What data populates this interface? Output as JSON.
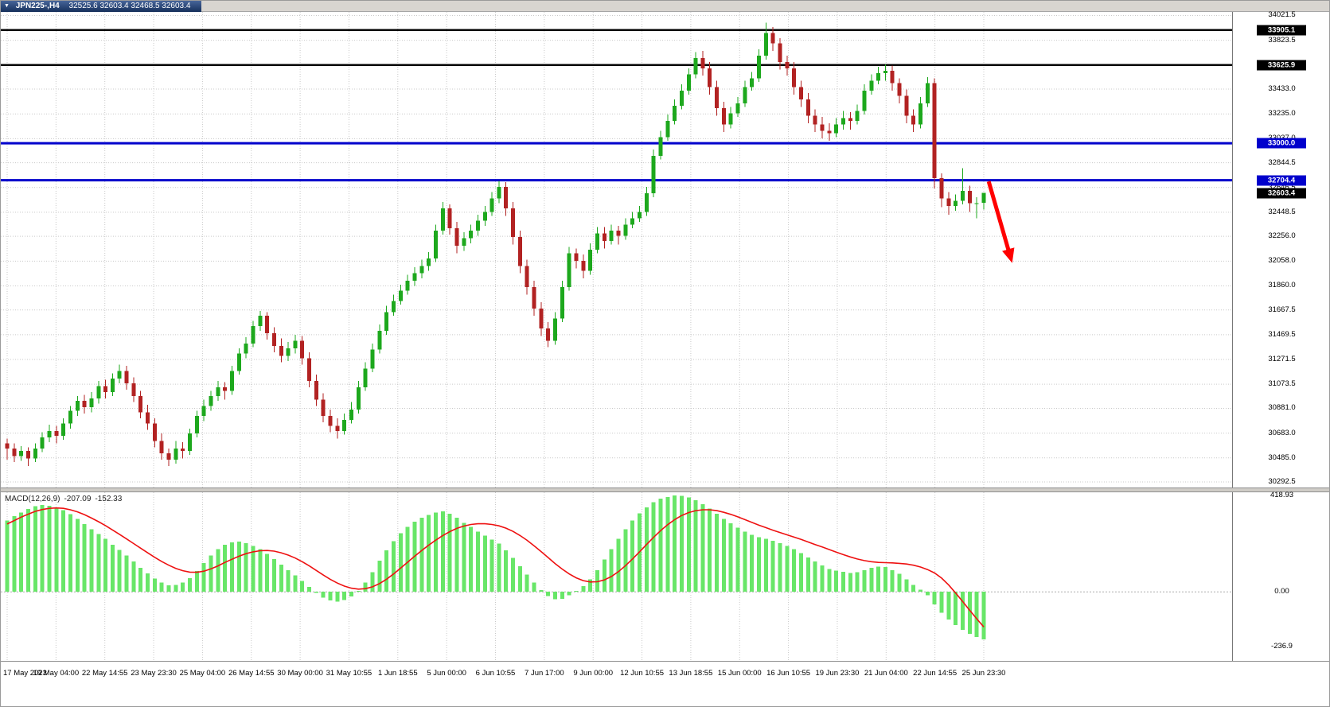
{
  "window": {
    "menu_glyph": "▼",
    "title_symbol": "JPN225-,H4",
    "title_ohlc": "32525.6 32603.4 32468.5 32603.4"
  },
  "chart_data": {
    "type": "candlestick",
    "title": "JPN225-,H4",
    "symbol": "JPN225-",
    "timeframe": "H4",
    "x_labels": [
      "17 May 2023",
      "19 May 04:00",
      "22 May 14:55",
      "23 May 23:30",
      "25 May 04:00",
      "26 May 14:55",
      "30 May 00:00",
      "31 May 10:55",
      "1 Jun 18:55",
      "5 Jun 00:00",
      "6 Jun 10:55",
      "7 Jun 17:00",
      "9 Jun 00:00",
      "12 Jun 10:55",
      "13 Jun 18:55",
      "15 Jun 00:00",
      "16 Jun 10:55",
      "19 Jun 23:30",
      "21 Jun 04:00",
      "22 Jun 14:55",
      "25 Jun 23:30"
    ],
    "price_ticks": [
      34021.5,
      33823.5,
      33625.5,
      33433.0,
      33235.0,
      33037.0,
      32844.5,
      32646.5,
      32448.5,
      32256.0,
      32058.0,
      31860.0,
      31667.5,
      31469.5,
      31271.5,
      31073.5,
      30881.0,
      30683.0,
      30485.0,
      30292.5
    ],
    "ylim": [
      30248,
      34050
    ],
    "h_lines": [
      {
        "value": 33905.1,
        "color": "#000000",
        "width": 2.5
      },
      {
        "value": 33625.9,
        "color": "#000000",
        "width": 2.5
      },
      {
        "value": 33000.0,
        "color": "#0000CC",
        "width": 3
      },
      {
        "value": 32704.4,
        "color": "#0000CC",
        "width": 3
      }
    ],
    "current_price": 32603.4,
    "arrow": {
      "color": "#FF0000",
      "from": {
        "index": 139.7,
        "price": 32695
      },
      "to": {
        "index": 142.7,
        "price": 32110
      }
    },
    "colors": {
      "up": "#1DA81D",
      "down": "#B22222",
      "grid": "#C9C9C9",
      "macd_hist": "#68E668",
      "macd_signal": "#EE1111",
      "line_black": "#000000",
      "line_blue": "#0000CC",
      "bg": "#FFFFFF"
    },
    "candles": [
      [
        30600,
        30640,
        30470,
        30560
      ],
      [
        30560,
        30600,
        30450,
        30500
      ],
      [
        30500,
        30580,
        30460,
        30540
      ],
      [
        30540,
        30570,
        30420,
        30480
      ],
      [
        30480,
        30600,
        30450,
        30560
      ],
      [
        30560,
        30690,
        30530,
        30650
      ],
      [
        30650,
        30750,
        30610,
        30700
      ],
      [
        30700,
        30740,
        30600,
        30660
      ],
      [
        30660,
        30800,
        30630,
        30760
      ],
      [
        30760,
        30900,
        30720,
        30860
      ],
      [
        30860,
        30980,
        30820,
        30940
      ],
      [
        30940,
        30990,
        30840,
        30890
      ],
      [
        30890,
        31010,
        30850,
        30960
      ],
      [
        30960,
        31100,
        30920,
        31060
      ],
      [
        31060,
        31110,
        30960,
        31010
      ],
      [
        31010,
        31160,
        30980,
        31120
      ],
      [
        31120,
        31230,
        31080,
        31180
      ],
      [
        31180,
        31220,
        31030,
        31080
      ],
      [
        31080,
        31130,
        30930,
        30980
      ],
      [
        30980,
        31020,
        30800,
        30850
      ],
      [
        30850,
        30910,
        30710,
        30760
      ],
      [
        30760,
        30800,
        30570,
        30620
      ],
      [
        30620,
        30680,
        30470,
        30520
      ],
      [
        30520,
        30560,
        30420,
        30470
      ],
      [
        30470,
        30620,
        30440,
        30560
      ],
      [
        30560,
        30610,
        30480,
        30540
      ],
      [
        30540,
        30720,
        30510,
        30680
      ],
      [
        30680,
        30860,
        30650,
        30820
      ],
      [
        30820,
        30950,
        30780,
        30900
      ],
      [
        30900,
        31020,
        30860,
        30980
      ],
      [
        30980,
        31100,
        30940,
        31050
      ],
      [
        31050,
        31090,
        30950,
        31020
      ],
      [
        31020,
        31220,
        30990,
        31180
      ],
      [
        31180,
        31360,
        31150,
        31320
      ],
      [
        31320,
        31450,
        31280,
        31400
      ],
      [
        31400,
        31580,
        31370,
        31540
      ],
      [
        31540,
        31660,
        31500,
        31620
      ],
      [
        31620,
        31650,
        31430,
        31480
      ],
      [
        31480,
        31530,
        31330,
        31380
      ],
      [
        31380,
        31440,
        31250,
        31300
      ],
      [
        31300,
        31410,
        31260,
        31360
      ],
      [
        31360,
        31470,
        31320,
        31420
      ],
      [
        31420,
        31460,
        31230,
        31280
      ],
      [
        31280,
        31330,
        31050,
        31100
      ],
      [
        31100,
        31150,
        30900,
        30950
      ],
      [
        30950,
        31000,
        30770,
        30820
      ],
      [
        30820,
        30870,
        30690,
        30740
      ],
      [
        30740,
        30800,
        30640,
        30700
      ],
      [
        30700,
        30840,
        30670,
        30790
      ],
      [
        30790,
        30930,
        30760,
        30870
      ],
      [
        30870,
        31100,
        30840,
        31050
      ],
      [
        31050,
        31250,
        31020,
        31200
      ],
      [
        31200,
        31400,
        31170,
        31350
      ],
      [
        31350,
        31550,
        31320,
        31500
      ],
      [
        31500,
        31700,
        31470,
        31650
      ],
      [
        31650,
        31790,
        31620,
        31740
      ],
      [
        31740,
        31870,
        31710,
        31820
      ],
      [
        31820,
        31950,
        31790,
        31900
      ],
      [
        31900,
        32010,
        31860,
        31960
      ],
      [
        31960,
        32070,
        31920,
        32020
      ],
      [
        32020,
        32130,
        31980,
        32080
      ],
      [
        32080,
        32350,
        32050,
        32300
      ],
      [
        32300,
        32530,
        32270,
        32480
      ],
      [
        32480,
        32510,
        32270,
        32320
      ],
      [
        32320,
        32370,
        32120,
        32180
      ],
      [
        32180,
        32290,
        32140,
        32240
      ],
      [
        32240,
        32350,
        32200,
        32300
      ],
      [
        32300,
        32430,
        32260,
        32380
      ],
      [
        32380,
        32500,
        32340,
        32450
      ],
      [
        32450,
        32610,
        32420,
        32560
      ],
      [
        32560,
        32700,
        32520,
        32650
      ],
      [
        32650,
        32690,
        32420,
        32480
      ],
      [
        32480,
        32530,
        32190,
        32250
      ],
      [
        32250,
        32300,
        31960,
        32020
      ],
      [
        32020,
        32070,
        31790,
        31850
      ],
      [
        31850,
        31900,
        31620,
        31680
      ],
      [
        31680,
        31730,
        31460,
        31520
      ],
      [
        31520,
        31570,
        31370,
        31420
      ],
      [
        31420,
        31650,
        31390,
        31600
      ],
      [
        31600,
        31900,
        31570,
        31850
      ],
      [
        31850,
        32170,
        31820,
        32120
      ],
      [
        32120,
        32160,
        32000,
        32060
      ],
      [
        32060,
        32110,
        31920,
        31980
      ],
      [
        31980,
        32200,
        31950,
        32150
      ],
      [
        32150,
        32330,
        32120,
        32280
      ],
      [
        32280,
        32330,
        32160,
        32220
      ],
      [
        32220,
        32350,
        32190,
        32300
      ],
      [
        32300,
        32340,
        32190,
        32260
      ],
      [
        32260,
        32400,
        32230,
        32350
      ],
      [
        32350,
        32450,
        32320,
        32400
      ],
      [
        32400,
        32500,
        32370,
        32450
      ],
      [
        32450,
        32650,
        32420,
        32600
      ],
      [
        32600,
        32950,
        32570,
        32900
      ],
      [
        32900,
        33100,
        32870,
        33050
      ],
      [
        33050,
        33230,
        33020,
        33180
      ],
      [
        33180,
        33350,
        33150,
        33300
      ],
      [
        33300,
        33470,
        33270,
        33420
      ],
      [
        33420,
        33600,
        33390,
        33550
      ],
      [
        33550,
        33730,
        33520,
        33680
      ],
      [
        33680,
        33740,
        33540,
        33600
      ],
      [
        33600,
        33650,
        33390,
        33450
      ],
      [
        33450,
        33500,
        33220,
        33280
      ],
      [
        33280,
        33330,
        33090,
        33150
      ],
      [
        33150,
        33290,
        33120,
        33240
      ],
      [
        33240,
        33370,
        33210,
        33320
      ],
      [
        33320,
        33500,
        33290,
        33450
      ],
      [
        33450,
        33570,
        33420,
        33520
      ],
      [
        33520,
        33750,
        33490,
        33700
      ],
      [
        33700,
        33965,
        33670,
        33880
      ],
      [
        33880,
        33930,
        33740,
        33800
      ],
      [
        33800,
        33840,
        33590,
        33650
      ],
      [
        33650,
        33700,
        33540,
        33600
      ],
      [
        33600,
        33650,
        33390,
        33450
      ],
      [
        33450,
        33500,
        33290,
        33350
      ],
      [
        33350,
        33400,
        33160,
        33220
      ],
      [
        33220,
        33270,
        33090,
        33150
      ],
      [
        33150,
        33210,
        33040,
        33100
      ],
      [
        33100,
        33160,
        33020,
        33080
      ],
      [
        33080,
        33200,
        33050,
        33150
      ],
      [
        33150,
        33260,
        33110,
        33200
      ],
      [
        33200,
        33250,
        33110,
        33180
      ],
      [
        33180,
        33310,
        33150,
        33260
      ],
      [
        33260,
        33470,
        33230,
        33420
      ],
      [
        33420,
        33550,
        33390,
        33500
      ],
      [
        33500,
        33610,
        33470,
        33560
      ],
      [
        33560,
        33630,
        33500,
        33580
      ],
      [
        33580,
        33620,
        33420,
        33480
      ],
      [
        33480,
        33520,
        33320,
        33380
      ],
      [
        33380,
        33430,
        33160,
        33220
      ],
      [
        33220,
        33270,
        33090,
        33150
      ],
      [
        33150,
        33370,
        33120,
        33320
      ],
      [
        33320,
        33530,
        33290,
        33480
      ],
      [
        33480,
        33520,
        32640,
        32720
      ],
      [
        32720,
        32760,
        32490,
        32560
      ],
      [
        32560,
        32610,
        32430,
        32500
      ],
      [
        32500,
        32590,
        32460,
        32540
      ],
      [
        32540,
        32800,
        32510,
        32620
      ],
      [
        32620,
        32660,
        32450,
        32520
      ],
      [
        32520,
        32570,
        32400,
        32520
      ],
      [
        32525.6,
        32603.4,
        32468.5,
        32603.4
      ]
    ],
    "macd": {
      "label": "MACD(12,26,9)",
      "value_main": "-207.09",
      "value_signal": "-152.33",
      "ticks": [
        {
          "label": "418.93",
          "value": 418.93
        },
        {
          "label": "0.00",
          "value": 0
        },
        {
          "label": "-236.9",
          "value": -236.9
        }
      ],
      "histogram": [
        310,
        330,
        345,
        360,
        372,
        378,
        375,
        368,
        355,
        338,
        318,
        295,
        272,
        252,
        230,
        205,
        182,
        158,
        132,
        105,
        80,
        58,
        40,
        28,
        30,
        40,
        60,
        90,
        125,
        158,
        185,
        205,
        215,
        218,
        212,
        200,
        185,
        165,
        142,
        118,
        95,
        72,
        48,
        22,
        -5,
        -25,
        -38,
        -42,
        -35,
        -20,
        5,
        40,
        85,
        135,
        180,
        220,
        255,
        283,
        305,
        322,
        335,
        345,
        350,
        340,
        322,
        300,
        282,
        262,
        245,
        228,
        210,
        180,
        148,
        112,
        75,
        40,
        8,
        -18,
        -32,
        -30,
        -15,
        5,
        25,
        55,
        95,
        140,
        185,
        230,
        272,
        310,
        342,
        368,
        390,
        405,
        412,
        418.93,
        417,
        410,
        398,
        382,
        362,
        340,
        318,
        298,
        280,
        262,
        248,
        238,
        230,
        222,
        212,
        200,
        185,
        168,
        150,
        132,
        115,
        100,
        92,
        88,
        82,
        85,
        95,
        105,
        110,
        108,
        95,
        78,
        55,
        30,
        10,
        -15,
        -55,
        -90,
        -120,
        -145,
        -165,
        -182,
        -196,
        -207.09
      ],
      "signal": [
        295,
        310,
        325,
        338,
        350,
        358,
        363,
        365,
        363,
        357,
        348,
        336,
        321,
        305,
        288,
        269,
        250,
        230,
        210,
        190,
        170,
        150,
        132,
        116,
        102,
        92,
        86,
        85,
        90,
        100,
        113,
        128,
        142,
        155,
        166,
        174,
        179,
        180,
        177,
        170,
        160,
        147,
        131,
        113,
        93,
        73,
        54,
        38,
        25,
        16,
        12,
        14,
        22,
        36,
        55,
        78,
        103,
        129,
        155,
        180,
        203,
        225,
        245,
        262,
        276,
        286,
        293,
        296,
        296,
        293,
        287,
        277,
        263,
        245,
        224,
        200,
        175,
        149,
        123,
        99,
        78,
        61,
        49,
        43,
        44,
        52,
        67,
        88,
        114,
        143,
        174,
        206,
        237,
        266,
        292,
        314,
        332,
        345,
        353,
        357,
        357,
        353,
        346,
        337,
        326,
        314,
        302,
        290,
        279,
        268,
        258,
        248,
        238,
        228,
        217,
        206,
        195,
        184,
        173,
        162,
        152,
        143,
        136,
        131,
        128,
        127,
        126,
        124,
        121,
        116,
        108,
        97,
        82,
        60,
        30,
        -5,
        -42,
        -80,
        -117,
        -152.33
      ]
    }
  }
}
